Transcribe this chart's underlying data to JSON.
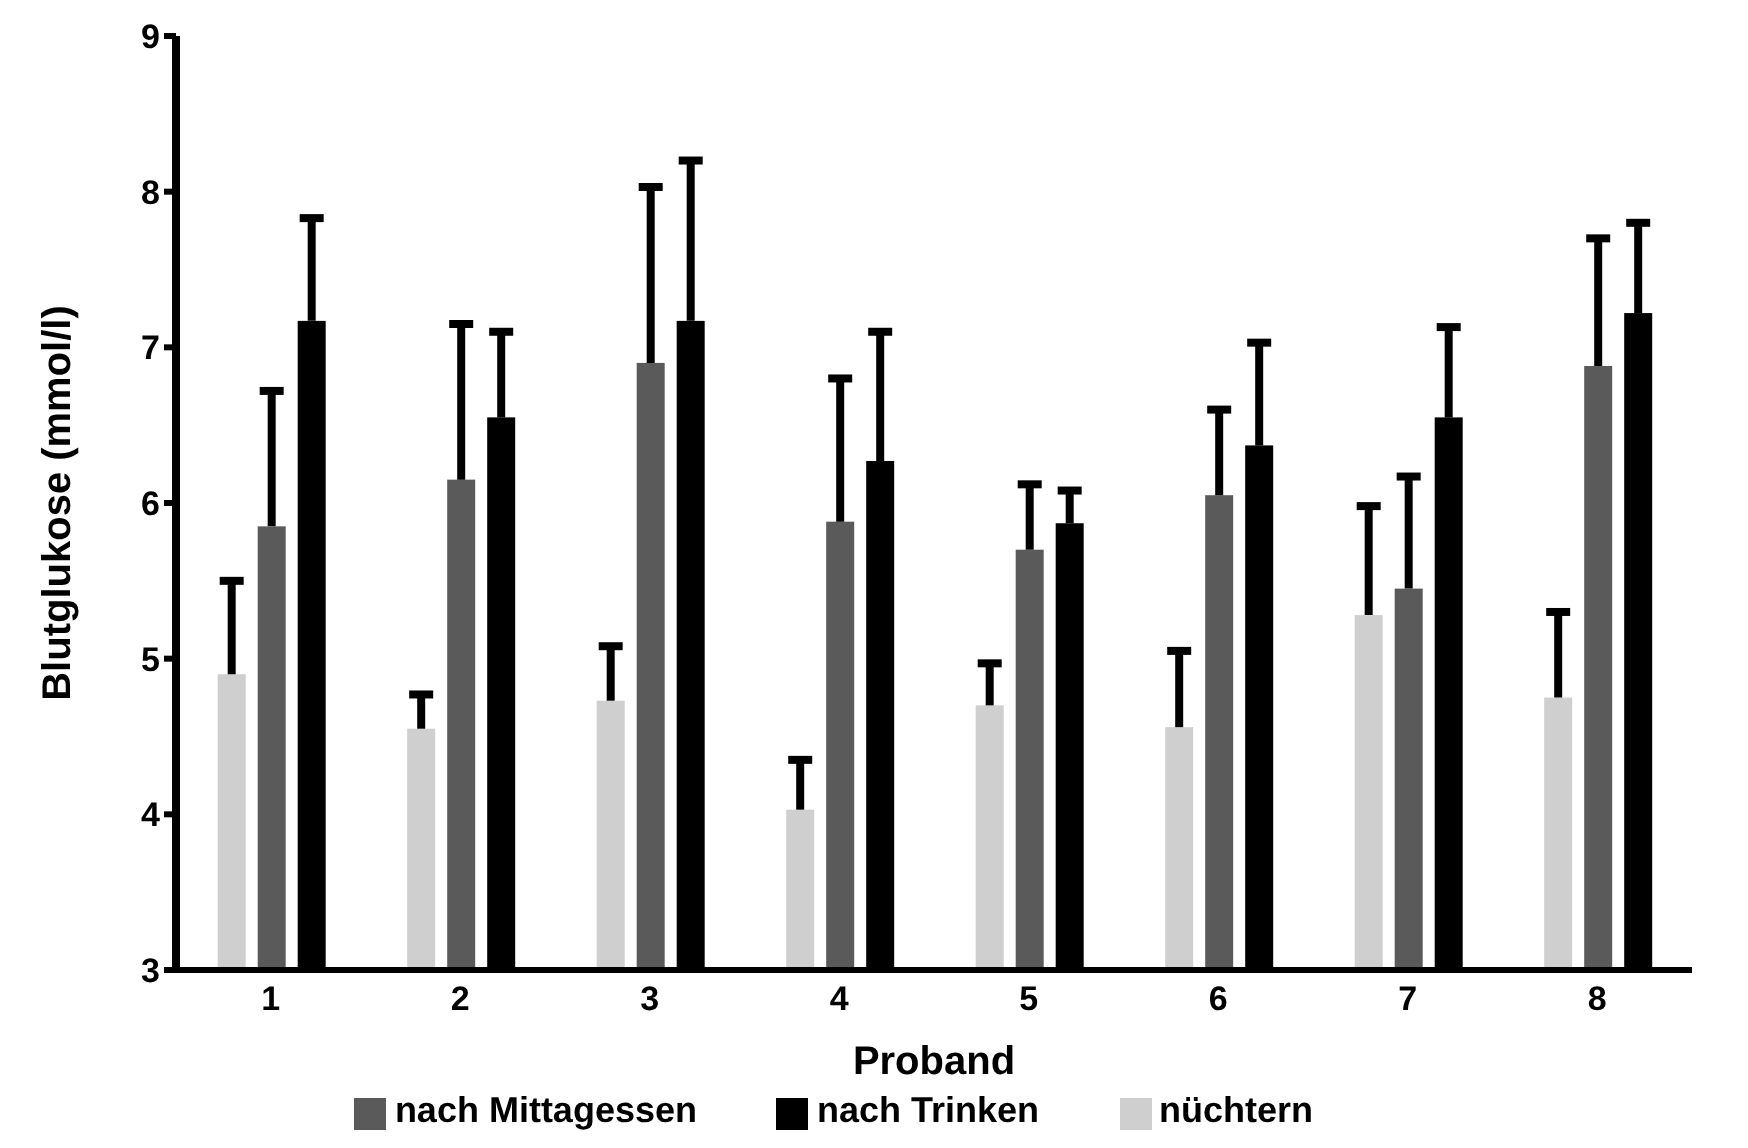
{
  "chart_data": {
    "type": "bar",
    "xlabel": "Proband",
    "ylabel": "Blutglukose (mmol/l)",
    "categories": [
      "1",
      "2",
      "3",
      "4",
      "5",
      "6",
      "7",
      "8"
    ],
    "series": [
      {
        "name": "nüchtern",
        "color": "#d0cfcf",
        "values": [
          4.9,
          4.55,
          4.73,
          4.03,
          4.7,
          4.56,
          5.28,
          4.75
        ],
        "errors": [
          [
            4.9,
            5.5
          ],
          [
            4.55,
            4.77
          ],
          [
            4.73,
            5.08
          ],
          [
            4.03,
            4.35
          ],
          [
            4.7,
            4.97
          ],
          [
            4.56,
            5.05
          ],
          [
            5.28,
            5.98
          ],
          [
            4.75,
            5.3
          ]
        ]
      },
      {
        "name": "nach Mittagessen",
        "color": "#5a5a5a",
        "values": [
          5.85,
          6.15,
          6.9,
          5.88,
          5.7,
          6.05,
          5.45,
          6.88
        ],
        "errors": [
          [
            5.85,
            6.72
          ],
          [
            6.15,
            7.15
          ],
          [
            6.9,
            8.03
          ],
          [
            5.88,
            6.8
          ],
          [
            5.7,
            6.12
          ],
          [
            6.05,
            6.6
          ],
          [
            5.45,
            6.17
          ],
          [
            6.88,
            7.7
          ]
        ]
      },
      {
        "name": "nach Trinken",
        "color": "#000000",
        "values": [
          7.17,
          6.55,
          7.17,
          6.27,
          5.87,
          6.37,
          6.55,
          7.22
        ],
        "errors": [
          [
            7.17,
            7.83
          ],
          [
            6.55,
            7.1
          ],
          [
            7.17,
            8.2
          ],
          [
            6.27,
            7.1
          ],
          [
            5.87,
            6.08
          ],
          [
            6.37,
            7.03
          ],
          [
            6.55,
            7.13
          ],
          [
            7.22,
            7.8
          ]
        ]
      }
    ],
    "ylim": [
      3,
      9
    ],
    "yticks": [
      3,
      4,
      5,
      6,
      7,
      8,
      9
    ],
    "grid": false,
    "legend": "bottom"
  }
}
